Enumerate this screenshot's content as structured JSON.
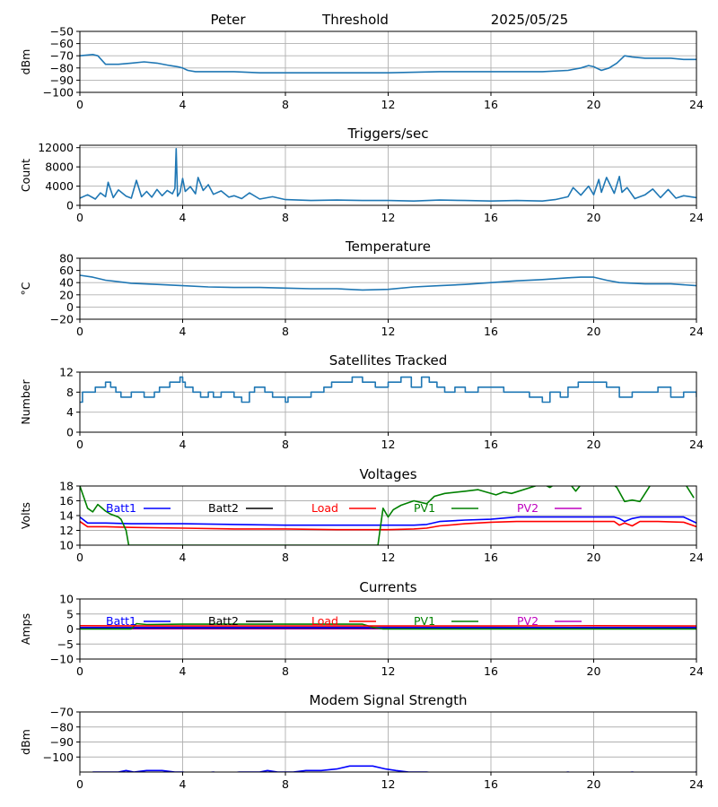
{
  "header": {
    "station": "Peter",
    "mode": "Threshold",
    "date": "2025/05/25"
  },
  "x_axis": {
    "ticks": [
      0,
      4,
      8,
      12,
      16,
      20,
      24
    ],
    "range": [
      0,
      24
    ]
  },
  "colors": {
    "series_default": "#1f77b4",
    "Batt1": "#0000ff",
    "Batt2": "#000000",
    "Load": "#ff0000",
    "PV1": "#008000",
    "PV2": "#bf00bf"
  },
  "chart_data": [
    {
      "id": "signal",
      "type": "line",
      "title": "",
      "ylabel": "dBm",
      "ylim": [
        -100,
        -50
      ],
      "yticks": [
        -100,
        -90,
        -80,
        -70,
        -60,
        -50
      ],
      "grid": true,
      "series": [
        {
          "color_key": "series_default",
          "x": [
            0,
            0.5,
            0.7,
            1.0,
            1.5,
            2.0,
            2.5,
            3.0,
            3.5,
            3.8,
            4.0,
            4.2,
            4.5,
            6,
            7,
            8,
            10,
            12,
            14,
            16,
            18,
            19.0,
            19.5,
            19.8,
            20.0,
            20.3,
            20.6,
            20.9,
            21.2,
            21.5,
            22,
            23,
            23.5,
            24
          ],
          "y": [
            -70,
            -69,
            -70,
            -77,
            -77,
            -76,
            -75,
            -76,
            -78,
            -79,
            -80,
            -82,
            -83,
            -83,
            -84,
            -84,
            -84,
            -84,
            -83,
            -83,
            -83,
            -82,
            -80,
            -78,
            -79,
            -82,
            -80,
            -76,
            -70,
            -71,
            -72,
            -72,
            -73,
            -73
          ]
        }
      ]
    },
    {
      "id": "triggers",
      "type": "line",
      "title": "Triggers/sec",
      "ylabel": "Count",
      "ylim": [
        0,
        12500
      ],
      "yticks": [
        0,
        4000,
        8000,
        12000
      ],
      "grid": true,
      "series": [
        {
          "color_key": "series_default",
          "x": [
            0,
            0.3,
            0.6,
            0.8,
            1.0,
            1.1,
            1.3,
            1.5,
            1.8,
            2.0,
            2.2,
            2.4,
            2.6,
            2.8,
            3.0,
            3.2,
            3.4,
            3.6,
            3.7,
            3.75,
            3.8,
            3.9,
            4.0,
            4.1,
            4.3,
            4.5,
            4.6,
            4.8,
            5.0,
            5.2,
            5.5,
            5.8,
            6.0,
            6.3,
            6.6,
            7.0,
            7.5,
            8,
            9,
            10,
            11,
            12,
            13,
            14,
            15,
            16,
            17,
            18,
            18.5,
            19,
            19.2,
            19.5,
            19.8,
            20,
            20.2,
            20.3,
            20.5,
            20.8,
            21,
            21.1,
            21.3,
            21.6,
            22,
            22.3,
            22.6,
            22.9,
            23.2,
            23.5,
            24
          ],
          "y": [
            1500,
            2200,
            1300,
            2600,
            1800,
            4800,
            1600,
            3200,
            1900,
            1500,
            5200,
            1800,
            2900,
            1700,
            3300,
            2000,
            3100,
            2400,
            3500,
            11800,
            1900,
            2700,
            5600,
            2900,
            3900,
            2400,
            5800,
            3100,
            4300,
            2300,
            3000,
            1700,
            2000,
            1400,
            2600,
            1300,
            1800,
            1200,
            1000,
            1100,
            1000,
            1000,
            900,
            1100,
            1000,
            900,
            1000,
            900,
            1200,
            1800,
            3700,
            2100,
            4000,
            2200,
            5400,
            2700,
            5800,
            2500,
            6000,
            2700,
            3700,
            1400,
            2200,
            3400,
            1600,
            3300,
            1500,
            2000,
            1600
          ]
        }
      ]
    },
    {
      "id": "temperature",
      "type": "line",
      "title": "Temperature",
      "ylabel": "°C",
      "ylim": [
        -20,
        80
      ],
      "yticks": [
        -20,
        0,
        20,
        40,
        60,
        80
      ],
      "grid": true,
      "series": [
        {
          "color_key": "series_default",
          "x": [
            0,
            0.5,
            1,
            2,
            3,
            4,
            5,
            6,
            7,
            8,
            9,
            10,
            11,
            12,
            13,
            14,
            15,
            16,
            17,
            18,
            19,
            19.5,
            20,
            20.5,
            21,
            22,
            23,
            24
          ],
          "y": [
            52,
            49,
            44,
            39,
            37,
            35,
            33,
            32,
            32,
            31,
            30,
            30,
            28,
            29,
            33,
            35,
            37,
            40,
            43,
            45,
            48,
            49,
            49,
            44,
            40,
            38,
            38,
            35
          ]
        }
      ]
    },
    {
      "id": "satellites",
      "type": "line",
      "title": "Satellites Tracked",
      "ylabel": "Number",
      "ylim": [
        0,
        12
      ],
      "yticks": [
        0,
        4,
        8,
        12
      ],
      "grid": true,
      "step": true,
      "series": [
        {
          "color_key": "series_default",
          "x": [
            0,
            0.1,
            0.3,
            0.6,
            1.0,
            1.2,
            1.4,
            1.6,
            2.0,
            2.5,
            2.9,
            3.1,
            3.5,
            3.9,
            4.0,
            4.1,
            4.4,
            4.7,
            5.0,
            5.2,
            5.5,
            6.0,
            6.3,
            6.6,
            6.8,
            7.2,
            7.5,
            8.0,
            8.1,
            8.5,
            9.0,
            9.5,
            9.8,
            10.2,
            10.6,
            11.0,
            11.5,
            12.0,
            12.5,
            12.9,
            13.3,
            13.6,
            13.9,
            14.2,
            14.6,
            15.0,
            15.5,
            16.0,
            16.5,
            17.0,
            17.5,
            18.0,
            18.3,
            18.7,
            19.0,
            19.4,
            19.8,
            20.5,
            21.0,
            21.5,
            22.0,
            22.5,
            23.0,
            23.5,
            24
          ],
          "y": [
            6,
            8,
            8,
            9,
            10,
            9,
            8,
            7,
            8,
            7,
            8,
            9,
            10,
            11,
            10,
            9,
            8,
            7,
            8,
            7,
            8,
            7,
            6,
            8,
            9,
            8,
            7,
            6,
            7,
            7,
            8,
            9,
            10,
            10,
            11,
            10,
            9,
            10,
            11,
            9,
            11,
            10,
            9,
            8,
            9,
            8,
            9,
            9,
            8,
            8,
            7,
            6,
            8,
            7,
            9,
            10,
            10,
            9,
            7,
            8,
            8,
            9,
            7,
            8,
            7
          ]
        }
      ]
    },
    {
      "id": "voltages",
      "type": "line",
      "title": "Voltages",
      "ylabel": "Volts",
      "ylim": [
        10,
        18
      ],
      "yticks": [
        10,
        12,
        14,
        16,
        18
      ],
      "grid": true,
      "legend": [
        "Batt1",
        "Batt2",
        "Load",
        "PV1",
        "PV2"
      ],
      "series": [
        {
          "name": "Batt1",
          "color_key": "Batt1",
          "x": [
            0,
            0.3,
            1,
            2,
            4,
            6,
            8,
            10,
            12,
            13,
            13.5,
            14,
            15,
            16,
            17,
            18,
            20,
            20.8,
            21,
            21.2,
            21.5,
            21.8,
            22.5,
            23.5,
            24
          ],
          "y": [
            13.8,
            13.0,
            13.0,
            12.9,
            12.9,
            12.8,
            12.7,
            12.7,
            12.7,
            12.7,
            12.8,
            13.2,
            13.4,
            13.5,
            13.8,
            13.8,
            13.8,
            13.8,
            13.6,
            13.2,
            13.6,
            13.8,
            13.8,
            13.8,
            13.0
          ]
        },
        {
          "name": "Load",
          "color_key": "Load",
          "x": [
            0,
            0.3,
            1,
            2,
            4,
            6,
            8,
            10,
            12,
            13,
            13.5,
            14,
            15,
            16,
            17,
            18,
            20,
            20.8,
            21,
            21.2,
            21.5,
            21.8,
            22.5,
            23.5,
            24
          ],
          "y": [
            13.2,
            12.5,
            12.5,
            12.4,
            12.3,
            12.2,
            12.2,
            12.1,
            12.1,
            12.2,
            12.3,
            12.6,
            12.9,
            13.1,
            13.2,
            13.2,
            13.2,
            13.2,
            12.7,
            13.0,
            12.6,
            13.2,
            13.2,
            13.1,
            12.5
          ]
        },
        {
          "name": "PV1",
          "color_key": "PV1",
          "x": [
            0,
            0.3,
            0.5,
            0.7,
            1.0,
            1.2,
            1.5,
            1.6,
            1.8,
            1.9,
            11.6,
            11.8,
            12.0,
            12.2,
            12.5,
            13.0,
            13.5,
            13.8,
            14.2,
            15.0,
            15.5,
            15.8,
            16.2,
            16.5,
            16.8,
            18.0,
            18.3,
            18.6,
            19.0,
            19.3,
            19.6,
            20.0,
            20.6,
            20.9,
            21.2,
            21.5,
            21.8,
            22.3,
            23.5,
            23.9
          ],
          "y": [
            18.0,
            15.0,
            14.5,
            15.5,
            14.6,
            14.2,
            13.8,
            13.5,
            12.0,
            10.0,
            10.0,
            15.0,
            13.8,
            14.8,
            15.4,
            16.0,
            15.6,
            16.6,
            17.0,
            17.3,
            17.5,
            17.2,
            16.8,
            17.2,
            17.0,
            18.3,
            17.8,
            18.5,
            18.6,
            17.3,
            18.6,
            18.6,
            18.6,
            17.8,
            15.9,
            16.1,
            15.9,
            18.6,
            18.6,
            16.4
          ]
        }
      ]
    },
    {
      "id": "currents",
      "type": "line",
      "title": "Currents",
      "ylabel": "Amps",
      "ylim": [
        -10,
        10
      ],
      "yticks": [
        -10,
        -5,
        0,
        5,
        10
      ],
      "grid": true,
      "legend": [
        "Batt1",
        "Batt2",
        "Load",
        "PV1",
        "PV2"
      ],
      "series": [
        {
          "name": "PV2",
          "color_key": "PV2",
          "x": [
            0,
            24
          ],
          "y": [
            0.1,
            0.1
          ]
        },
        {
          "name": "Batt2",
          "color_key": "Batt2",
          "x": [
            0,
            24
          ],
          "y": [
            0.3,
            0.3
          ]
        },
        {
          "name": "Batt1",
          "color_key": "Batt1",
          "x": [
            0,
            24
          ],
          "y": [
            0.5,
            0.5
          ]
        },
        {
          "name": "PV1",
          "color_key": "PV1",
          "x": [
            0,
            2.0,
            2.2,
            2.6,
            4,
            6,
            8,
            10,
            11.0,
            11.4,
            11.8,
            12,
            16,
            20,
            24
          ],
          "y": [
            0.0,
            0.0,
            1.8,
            1.5,
            1.6,
            1.6,
            1.6,
            1.6,
            1.6,
            0.6,
            0.0,
            0.0,
            0.0,
            0.0,
            0.0
          ]
        },
        {
          "name": "Load",
          "color_key": "Load",
          "x": [
            0,
            4,
            8,
            12,
            16,
            20,
            23.5,
            24
          ],
          "y": [
            1.1,
            1.0,
            1.0,
            1.0,
            1.0,
            1.1,
            1.0,
            1.0
          ]
        }
      ]
    },
    {
      "id": "modem",
      "type": "line",
      "title": "Modem Signal Strength",
      "ylabel": "dBm",
      "ylim": [
        -110,
        -70
      ],
      "yticks": [
        -100,
        -90,
        -80,
        -70
      ],
      "grid": true,
      "series": [
        {
          "color_key": "Batt1",
          "x": [
            0.5,
            1.5,
            1.8,
            2.1,
            2.6,
            3.2,
            3.7,
            4.0,
            4.5,
            5.2,
            5.6,
            6.2,
            7.0,
            7.3,
            7.7,
            8.3,
            8.8,
            9.4,
            10.0,
            10.5,
            11.0,
            11.4,
            11.9,
            12.3,
            12.8,
            13.5,
            14.0,
            14.5,
            18.5,
            19.0,
            19.3,
            21.0,
            21.5,
            22.0,
            23.5,
            24
          ],
          "y": [
            -110,
            -110,
            -109,
            -110,
            -109,
            -109,
            -110,
            -110,
            -111,
            -110,
            -111,
            -110,
            -110,
            -109,
            -110,
            -110,
            -109,
            -109,
            -108,
            -106,
            -106,
            -106,
            -108,
            -109,
            -110,
            -110,
            -111,
            -111,
            -111,
            -110,
            -111,
            -111,
            -110,
            -111,
            -111,
            -110
          ]
        }
      ]
    }
  ]
}
